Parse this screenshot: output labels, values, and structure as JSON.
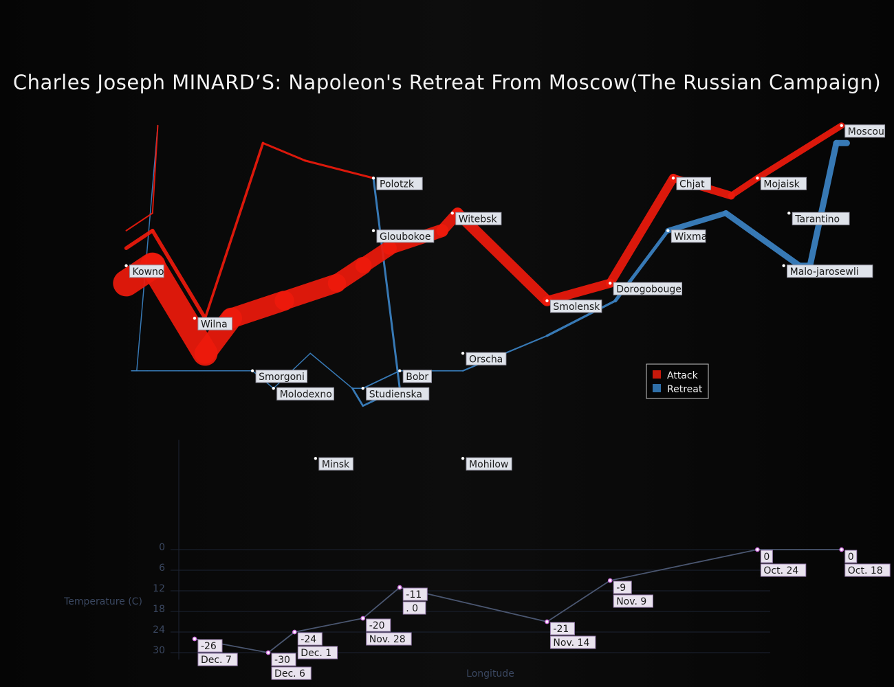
{
  "title": "Charles Joseph MINARD’S: Napoleon's Retreat From Moscow(The Russian Campaign)",
  "legend": {
    "placement": "bottom-right of map",
    "items": [
      {
        "label": "Attack",
        "color": "#c8190b"
      },
      {
        "label": "Retreat",
        "color": "#2f6fa8"
      }
    ]
  },
  "chart_data": [
    {
      "type": "line",
      "name": "troop-movement-map",
      "xlim": [
        23.3,
        38.1
      ],
      "ylim": [
        53.85,
        55.85
      ],
      "attack_color": "#ee1a0c",
      "retreat_color": "#3a7fbf",
      "series": [
        {
          "kind": "attack",
          "group": 1,
          "points": [
            {
              "lon": 24.0,
              "lat": 54.9,
              "survivors": 422000
            },
            {
              "lon": 24.5,
              "lat": 55.0,
              "survivors": 400000
            },
            {
              "lon": 25.5,
              "lat": 54.5,
              "survivors": 340000
            },
            {
              "lon": 26.0,
              "lat": 54.7,
              "survivors": 320000
            },
            {
              "lon": 27.0,
              "lat": 54.8,
              "survivors": 300000
            },
            {
              "lon": 28.0,
              "lat": 54.9,
              "survivors": 280000
            },
            {
              "lon": 28.5,
              "lat": 55.0,
              "survivors": 240000
            },
            {
              "lon": 29.0,
              "lat": 55.1,
              "survivors": 210000
            },
            {
              "lon": 30.0,
              "lat": 55.2,
              "survivors": 180000
            },
            {
              "lon": 30.3,
              "lat": 55.3,
              "survivors": 175000
            },
            {
              "lon": 32.0,
              "lat": 54.8,
              "survivors": 145000
            },
            {
              "lon": 33.2,
              "lat": 54.9,
              "survivors": 140000
            },
            {
              "lon": 34.4,
              "lat": 55.5,
              "survivors": 127100
            },
            {
              "lon": 35.5,
              "lat": 55.4,
              "survivors": 100000
            },
            {
              "lon": 36.0,
              "lat": 55.5,
              "survivors": 100000
            },
            {
              "lon": 37.6,
              "lat": 55.8,
              "survivors": 100000
            }
          ]
        },
        {
          "kind": "retreat",
          "group": 1,
          "points": [
            {
              "lon": 37.7,
              "lat": 55.7,
              "survivors": 100000
            },
            {
              "lon": 37.5,
              "lat": 55.7,
              "survivors": 98000
            },
            {
              "lon": 37.0,
              "lat": 55.0,
              "survivors": 97000
            },
            {
              "lon": 36.8,
              "lat": 55.0,
              "survivors": 96000
            },
            {
              "lon": 35.4,
              "lat": 55.3,
              "survivors": 87000
            },
            {
              "lon": 34.3,
              "lat": 55.2,
              "survivors": 55000
            },
            {
              "lon": 33.3,
              "lat": 54.8,
              "survivors": 37000
            },
            {
              "lon": 32.0,
              "lat": 54.6,
              "survivors": 24000
            },
            {
              "lon": 30.4,
              "lat": 54.4,
              "survivors": 20000
            },
            {
              "lon": 29.2,
              "lat": 54.4,
              "survivors": 20000
            },
            {
              "lon": 28.5,
              "lat": 54.3,
              "survivors": 20000
            },
            {
              "lon": 28.3,
              "lat": 54.3,
              "survivors": 20000
            }
          ]
        },
        {
          "kind": "retreat",
          "group": 1,
          "points": [
            {
              "lon": 28.3,
              "lat": 54.3,
              "survivors": 16000
            },
            {
              "lon": 27.5,
              "lat": 54.5,
              "survivors": 16000
            },
            {
              "lon": 26.8,
              "lat": 54.3,
              "survivors": 12000
            },
            {
              "lon": 26.4,
              "lat": 54.4,
              "survivors": 14000
            },
            {
              "lon": 25.0,
              "lat": 54.4,
              "survivors": 8000
            },
            {
              "lon": 24.4,
              "lat": 54.4,
              "survivors": 4000
            },
            {
              "lon": 24.2,
              "lat": 54.4,
              "survivors": 4000
            },
            {
              "lon": 24.1,
              "lat": 54.4,
              "survivors": 4000
            }
          ]
        },
        {
          "kind": "attack",
          "group": 2,
          "points": [
            {
              "lon": 24.0,
              "lat": 55.1,
              "survivors": 60000
            },
            {
              "lon": 24.5,
              "lat": 55.2,
              "survivors": 60000
            },
            {
              "lon": 25.5,
              "lat": 54.7,
              "survivors": 40000
            },
            {
              "lon": 26.6,
              "lat": 55.7,
              "survivors": 33000
            },
            {
              "lon": 27.4,
              "lat": 55.6,
              "survivors": 33000
            },
            {
              "lon": 28.7,
              "lat": 55.5,
              "survivors": 33000
            }
          ]
        },
        {
          "kind": "retreat",
          "group": 2,
          "points": [
            {
              "lon": 28.7,
              "lat": 55.5,
              "survivors": 33000
            },
            {
              "lon": 29.2,
              "lat": 54.3,
              "survivors": 30000
            },
            {
              "lon": 28.5,
              "lat": 54.2,
              "survivors": 30000
            },
            {
              "lon": 28.3,
              "lat": 54.3,
              "survivors": 28000
            }
          ]
        },
        {
          "kind": "attack",
          "group": 3,
          "points": [
            {
              "lon": 24.0,
              "lat": 55.2,
              "survivors": 22000
            },
            {
              "lon": 24.5,
              "lat": 55.3,
              "survivors": 22000
            },
            {
              "lon": 24.6,
              "lat": 55.8,
              "survivors": 6000
            }
          ]
        },
        {
          "kind": "retreat",
          "group": 3,
          "points": [
            {
              "lon": 24.6,
              "lat": 55.8,
              "survivors": 6000
            },
            {
              "lon": 24.2,
              "lat": 54.4,
              "survivors": 6000
            },
            {
              "lon": 24.1,
              "lat": 54.4,
              "survivors": 6000
            }
          ]
        }
      ],
      "cities": [
        {
          "name": "Kowno",
          "lon": 24.0,
          "lat": 55.0
        },
        {
          "name": "Wilna",
          "lon": 25.3,
          "lat": 54.7
        },
        {
          "name": "Smorgoni",
          "lon": 26.4,
          "lat": 54.4
        },
        {
          "name": "Molodexno",
          "lon": 26.8,
          "lat": 54.3
        },
        {
          "name": "Gloubokoe",
          "lon": 28.7,
          "lat": 55.2
        },
        {
          "name": "Minsk",
          "lon": 27.6,
          "lat": 53.9
        },
        {
          "name": "Studienska",
          "lon": 28.5,
          "lat": 54.3
        },
        {
          "name": "Polotzk",
          "lon": 28.7,
          "lat": 55.5
        },
        {
          "name": "Bobr",
          "lon": 29.2,
          "lat": 54.4
        },
        {
          "name": "Witebsk",
          "lon": 30.2,
          "lat": 55.3
        },
        {
          "name": "Orscha",
          "lon": 30.4,
          "lat": 54.5
        },
        {
          "name": "Mohilow",
          "lon": 30.4,
          "lat": 53.9
        },
        {
          "name": "Smolensk",
          "lon": 32.0,
          "lat": 54.8
        },
        {
          "name": "Dorogobouge",
          "lon": 33.2,
          "lat": 54.9
        },
        {
          "name": "Wixma",
          "lon": 34.3,
          "lat": 55.2
        },
        {
          "name": "Chjat",
          "lon": 34.4,
          "lat": 55.5
        },
        {
          "name": "Mojaisk",
          "lon": 36.0,
          "lat": 55.5
        },
        {
          "name": "Moscou",
          "lon": 37.6,
          "lat": 55.8
        },
        {
          "name": "Tarantino",
          "lon": 36.6,
          "lat": 55.3
        },
        {
          "name": "Malo-jarosewli",
          "lon": 36.5,
          "lat": 55.0
        }
      ]
    },
    {
      "type": "line",
      "name": "temperature",
      "xlabel": "Longitude",
      "ylabel": "Temperature (C)",
      "xlim": [
        23.3,
        38.1
      ],
      "ylim": [
        0,
        30
      ],
      "y_inverted": true,
      "yticks": [
        0,
        6,
        12,
        18,
        24,
        30
      ],
      "grid": true,
      "line_color": "#4a5670",
      "marker_color": "#d070e0",
      "points": [
        {
          "lon": 37.6,
          "temp": "0",
          "date": "Oct. 18"
        },
        {
          "lon": 36.0,
          "temp": "0",
          "date": "Oct. 24"
        },
        {
          "lon": 33.2,
          "temp": "-9",
          "date": "Nov. 9"
        },
        {
          "lon": 32.0,
          "temp": "-21",
          "date": "Nov. 14"
        },
        {
          "lon": 29.2,
          "temp": "-11",
          "date": ". 0"
        },
        {
          "lon": 28.5,
          "temp": "-20",
          "date": "Nov. 28"
        },
        {
          "lon": 27.2,
          "temp": "-24",
          "date": "Dec. 1"
        },
        {
          "lon": 26.7,
          "temp": "-30",
          "date": "Dec. 6"
        },
        {
          "lon": 25.3,
          "temp": "-26",
          "date": "Dec. 7"
        }
      ]
    }
  ]
}
